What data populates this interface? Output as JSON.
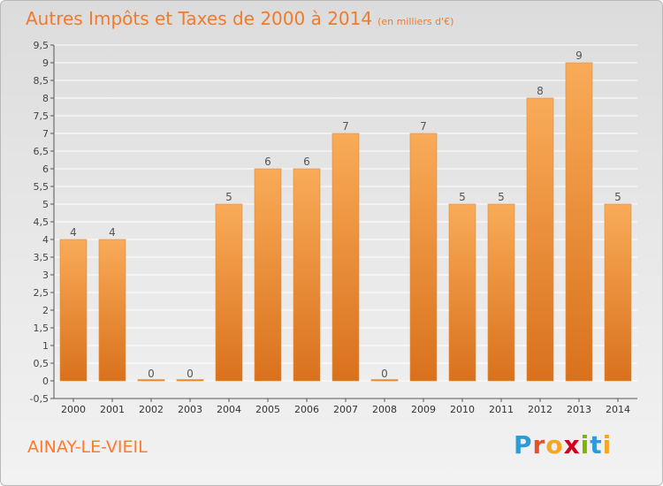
{
  "chart_data": {
    "type": "bar",
    "title": "Autres Impôts et Taxes de 2000 à 2014",
    "subtitle": "(en milliers d'€)",
    "xlabel": "",
    "ylabel": "",
    "categories": [
      "2000",
      "2001",
      "2002",
      "2003",
      "2004",
      "2005",
      "2006",
      "2007",
      "2008",
      "2009",
      "2010",
      "2011",
      "2012",
      "2013",
      "2014"
    ],
    "values": [
      4,
      4,
      0,
      0,
      5,
      6,
      6,
      7,
      0,
      7,
      5,
      5,
      8,
      9,
      5
    ],
    "data_labels": [
      "4",
      "4",
      "0",
      "0",
      "5",
      "6",
      "6",
      "7",
      "0",
      "7",
      "5",
      "5",
      "8",
      "9",
      "5"
    ],
    "ylim": [
      -0.5,
      9.5
    ],
    "y_ticks": [
      "-0,5",
      "0",
      "0,5",
      "1",
      "1,5",
      "2",
      "2,5",
      "3",
      "3,5",
      "4",
      "4,5",
      "5",
      "5,5",
      "6",
      "6,5",
      "7",
      "7,5",
      "8",
      "8,5",
      "9",
      "9,5"
    ],
    "y_tick_values": [
      -0.5,
      0,
      0.5,
      1,
      1.5,
      2,
      2.5,
      3,
      3.5,
      4,
      4.5,
      5,
      5.5,
      6,
      6.5,
      7,
      7.5,
      8,
      8.5,
      9,
      9.5
    ],
    "grid": true,
    "legend": "none",
    "colors": {
      "bar_top": "#f9ab58",
      "bar_bottom": "#d9711c",
      "title": "#f07b2c",
      "grid": "#ffffff"
    }
  },
  "page": {
    "commune": "AINAY-LE-VIEIL",
    "logo": [
      "P",
      "r",
      "o",
      "x",
      "i",
      "t",
      "i"
    ],
    "logo_colors": [
      "#2e9bd6",
      "#e8502a",
      "#f5a623",
      "#d0021b",
      "#7ab800",
      "#2e9bd6",
      "#f5a623"
    ]
  }
}
